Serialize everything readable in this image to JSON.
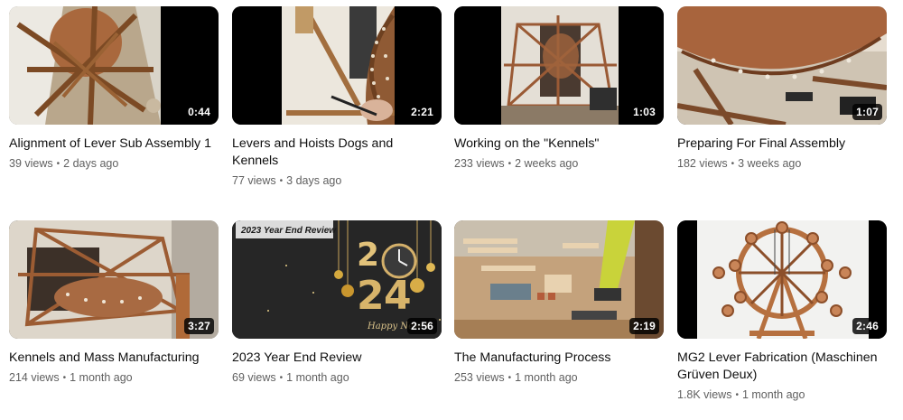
{
  "videos": [
    {
      "title": "Alignment of Lever Sub Assembly 1",
      "duration": "0:44",
      "views": "39 views",
      "age": "2 days ago"
    },
    {
      "title": "Levers and Hoists Dogs and Kennels",
      "duration": "2:21",
      "views": "77 views",
      "age": "3 days ago"
    },
    {
      "title": "Working on the \"Kennels\"",
      "duration": "1:03",
      "views": "233 views",
      "age": "2 weeks ago"
    },
    {
      "title": "Preparing For Final Assembly",
      "duration": "1:07",
      "views": "182 views",
      "age": "3 weeks ago"
    },
    {
      "title": "Kennels and Mass Manufacturing",
      "duration": "3:27",
      "views": "214 views",
      "age": "1 month ago"
    },
    {
      "title": "2023 Year End Review",
      "duration": "2:56",
      "views": "69 views",
      "age": "1 month ago",
      "thumb_text": {
        "banner": "2023 Year End Review",
        "digits_top": "2",
        "digits_mid": "2",
        "digits_a": "2",
        "digits_b": "4",
        "greeting": "Happy New Y"
      }
    },
    {
      "title": "The Manufacturing Process",
      "duration": "2:19",
      "views": "253 views",
      "age": "1 month ago"
    },
    {
      "title": "MG2 Lever Fabrication (Maschinen Grüven Deux)",
      "duration": "2:46",
      "views": "1.8K views",
      "age": "1 month ago"
    }
  ],
  "meta_separator": "•"
}
